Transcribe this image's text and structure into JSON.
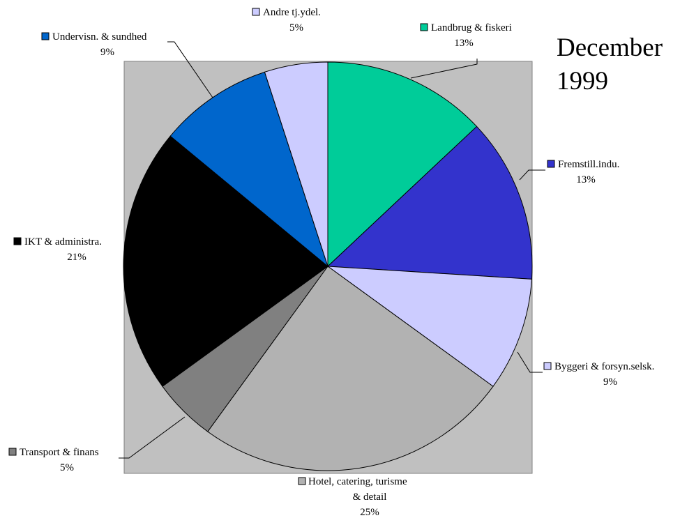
{
  "chart_data": {
    "type": "pie",
    "title": [
      "December",
      "1999"
    ],
    "slices": [
      {
        "label": [
          "Landbrug & fiskeri"
        ],
        "value": 13,
        "pct_text": "13%",
        "color": "#00cc99"
      },
      {
        "label": [
          "Fremstill.indu."
        ],
        "value": 13,
        "pct_text": "13%",
        "color": "#3333cc"
      },
      {
        "label": [
          "Byggeri & forsyn.selsk."
        ],
        "value": 9,
        "pct_text": "9%",
        "color": "#ccccff"
      },
      {
        "label": [
          "Hotel, catering, turisme",
          "& detail"
        ],
        "value": 25,
        "pct_text": "25%",
        "color": "#b2b2b2"
      },
      {
        "label": [
          "Transport & finans"
        ],
        "value": 5,
        "pct_text": "5%",
        "color": "#808080"
      },
      {
        "label": [
          "IKT & administra."
        ],
        "value": 21,
        "pct_text": "21%",
        "color": "#000000"
      },
      {
        "label": [
          "Undervisn. & sundhed"
        ],
        "value": 9,
        "pct_text": "9%",
        "color": "#0066cc"
      },
      {
        "label": [
          "Andre tj.ydel."
        ],
        "value": 5,
        "pct_text": "5%",
        "color": "#ccccff"
      }
    ],
    "plot_background": "#c0c0c0",
    "legend": "none"
  }
}
